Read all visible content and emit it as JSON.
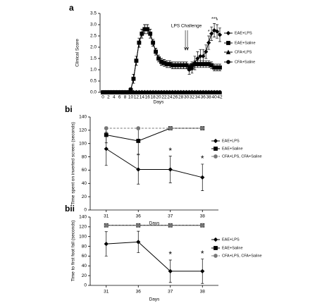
{
  "chart_data": [
    {
      "type": "line",
      "panel_label": "a",
      "y_label": "Clinical Score",
      "x_label": "Days",
      "x": [
        0,
        1,
        2,
        3,
        4,
        5,
        6,
        7,
        8,
        9,
        10,
        11,
        12,
        13,
        14,
        15,
        16,
        17,
        18,
        19,
        20,
        21,
        22,
        23,
        24,
        25,
        26,
        27,
        28,
        29,
        30,
        31,
        32,
        33,
        34,
        35,
        36,
        37,
        38,
        39,
        40,
        41,
        42
      ],
      "xlim": [
        0,
        42
      ],
      "xticks": [
        0,
        2,
        4,
        6,
        8,
        10,
        12,
        14,
        16,
        18,
        20,
        22,
        24,
        26,
        28,
        30,
        32,
        34,
        36,
        38,
        40,
        42
      ],
      "ylim": [
        0,
        3.5
      ],
      "yticks": [
        {
          "value": 0,
          "label": "0.0"
        },
        0.5,
        {
          "value": 1,
          "label": "1.0"
        },
        1.5,
        {
          "value": 2,
          "label": "2.0"
        },
        2.5,
        {
          "value": 3,
          "label": "3.0"
        },
        3.5
      ],
      "series": [
        {
          "name": "EAE+LPS",
          "color": "#000000",
          "marker": "diamond",
          "dashed": false,
          "values": [
            0,
            0,
            0,
            0,
            0,
            0,
            0,
            0,
            0,
            0,
            0.1,
            0.6,
            1.4,
            2.2,
            2.6,
            2.8,
            2.8,
            2.6,
            2.2,
            1.8,
            1.5,
            1.35,
            1.3,
            1.25,
            1.25,
            1.2,
            1.2,
            1.2,
            1.2,
            1.2,
            1.2,
            1.0,
            1.05,
            1.3,
            1.5,
            1.6,
            1.6,
            1.8,
            2.2,
            2.6,
            2.75,
            2.7,
            2.55
          ],
          "errors": [
            0,
            0,
            0,
            0,
            0,
            0,
            0,
            0,
            0,
            0,
            0.1,
            0.2,
            0.2,
            0.2,
            0.2,
            0.2,
            0.2,
            0.2,
            0.15,
            0.15,
            0.15,
            0.15,
            0.15,
            0.15,
            0.15,
            0.15,
            0.15,
            0.15,
            0.15,
            0.15,
            0.15,
            0.2,
            0.2,
            0.3,
            0.3,
            0.3,
            0.3,
            0.3,
            0.3,
            0.3,
            0.3,
            0.3,
            0.3
          ]
        },
        {
          "name": "EAE+Saline",
          "color": "#000000",
          "marker": "square",
          "dashed": false,
          "values": [
            0,
            0,
            0,
            0,
            0,
            0,
            0,
            0,
            0,
            0,
            0.1,
            0.6,
            1.4,
            2.2,
            2.6,
            2.8,
            2.8,
            2.6,
            2.2,
            1.8,
            1.5,
            1.35,
            1.3,
            1.25,
            1.25,
            1.2,
            1.2,
            1.2,
            1.2,
            1.2,
            1.2,
            1.1,
            1.2,
            1.25,
            1.25,
            1.25,
            1.25,
            1.25,
            1.25,
            1.2,
            1.1,
            1.1,
            1.1
          ],
          "errors": [
            0,
            0,
            0,
            0,
            0,
            0,
            0,
            0,
            0,
            0,
            0.1,
            0.2,
            0.2,
            0.2,
            0.2,
            0.2,
            0.2,
            0.2,
            0.15,
            0.15,
            0.15,
            0.15,
            0.15,
            0.15,
            0.15,
            0.15,
            0.15,
            0.15,
            0.15,
            0.15,
            0.15,
            0.15,
            0.15,
            0.15,
            0.15,
            0.15,
            0.15,
            0.15,
            0.15,
            0.15,
            0.15,
            0.15,
            0.15
          ]
        },
        {
          "name": "CFA+LPS",
          "color": "#000000",
          "marker": "triangle",
          "dashed": false,
          "values": [
            0,
            0,
            0,
            0,
            0,
            0,
            0,
            0,
            0,
            0,
            0,
            0,
            0,
            0,
            0,
            0,
            0,
            0,
            0,
            0,
            0,
            0,
            0,
            0,
            0,
            0,
            0,
            0,
            0,
            0,
            0,
            0,
            0,
            0,
            0,
            0,
            0,
            0,
            0,
            0,
            0,
            0,
            0
          ]
        },
        {
          "name": "CFA+Saline",
          "color": "#000000",
          "marker": "circle",
          "dashed": false,
          "values": [
            0,
            0,
            0,
            0,
            0,
            0,
            0,
            0,
            0,
            0,
            0,
            0,
            0,
            0,
            0,
            0,
            0,
            0,
            0,
            0,
            0,
            0,
            0,
            0,
            0,
            0,
            0,
            0,
            0,
            0,
            0,
            0,
            0,
            0,
            0,
            0,
            0,
            0,
            0,
            0,
            0,
            0,
            0
          ]
        }
      ],
      "annotations": [
        {
          "text": "LPS Challenge",
          "x": 30,
          "arrow": true
        },
        {
          "text": "***",
          "x": 40
        },
        {
          "text": "*",
          "x": 38
        },
        {
          "text": "*",
          "x": 41
        }
      ]
    },
    {
      "type": "line",
      "panel_label": "bi",
      "y_label": "Time spent on inverted screen (seconds)",
      "x_label": "Days",
      "categories": [
        "31",
        "36",
        "37",
        "38"
      ],
      "ylim": [
        0,
        140
      ],
      "yticks": [
        0,
        20,
        40,
        60,
        80,
        100,
        120,
        140
      ],
      "series": [
        {
          "name": "EAE+LPS",
          "color": "#000000",
          "marker": "diamond",
          "dashed": false,
          "values": [
            92,
            61,
            61,
            49
          ],
          "errors": [
            25,
            22,
            20,
            20
          ]
        },
        {
          "name": "EAE+Saline",
          "color": "#000000",
          "marker": "square",
          "dashed": false,
          "values": [
            113,
            104,
            123,
            123
          ],
          "errors": [
            12,
            20,
            0,
            0
          ]
        },
        {
          "name": "CFA+LPS, CFA+Saline",
          "color": "#777777",
          "marker": "circle",
          "dashed": true,
          "values": [
            123,
            123,
            123,
            123
          ]
        }
      ],
      "annotations": [
        {
          "text": "*",
          "category": "37"
        },
        {
          "text": "*",
          "category": "38"
        }
      ]
    },
    {
      "type": "line",
      "panel_label": "bii",
      "y_label": "Time to first foot fall (seconds)",
      "x_label": "Days",
      "categories": [
        "31",
        "36",
        "37",
        "38"
      ],
      "ylim": [
        0,
        140
      ],
      "yticks": [
        0,
        20,
        40,
        60,
        80,
        100,
        120,
        140
      ],
      "series": [
        {
          "name": "EAE+LPS",
          "color": "#000000",
          "marker": "diamond",
          "dashed": false,
          "values": [
            85,
            89,
            29,
            29
          ],
          "errors": [
            25,
            22,
            23,
            25
          ]
        },
        {
          "name": "EAE+Saline",
          "color": "#000000",
          "marker": "square",
          "dashed": false,
          "values": [
            123,
            123,
            123,
            123
          ]
        },
        {
          "name": "CFA+LPS, CFA+Saline",
          "color": "#777777",
          "marker": "circle",
          "dashed": true,
          "values": [
            123,
            123,
            123,
            123
          ]
        }
      ],
      "annotations": [
        {
          "text": "*",
          "category": "37"
        },
        {
          "text": "*",
          "category": "38"
        }
      ]
    }
  ]
}
